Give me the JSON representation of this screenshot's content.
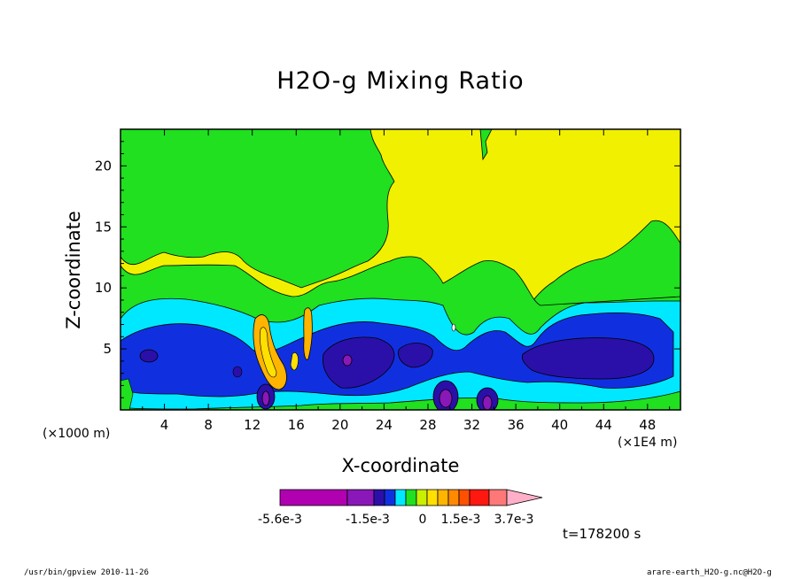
{
  "chart_data": {
    "type": "heatmap",
    "title": "H2O-g Mixing Ratio",
    "xlabel": "X-coordinate",
    "ylabel": "Z-coordinate",
    "xlim": [
      0,
      51
    ],
    "ylim": [
      0,
      23
    ],
    "x_ticks": [
      4,
      8,
      12,
      16,
      20,
      24,
      28,
      32,
      36,
      40,
      44,
      48
    ],
    "y_ticks": [
      5,
      10,
      15,
      20
    ],
    "x_scale_left": "(×1000 m)",
    "x_scale_right": "(×1E4 m)",
    "colorbar": {
      "colors": [
        "#b000b0",
        "#8a18b8",
        "#2a10a8",
        "#1030e0",
        "#00e8ff",
        "#20e020",
        "#c8f000",
        "#ffe000",
        "#ffb400",
        "#ff8a00",
        "#ff5000",
        "#ff1810",
        "#ff7878",
        "#ffb0c8"
      ],
      "labels": [
        "-5.6e-3",
        "-1.5e-3",
        "0",
        "1.5e-3",
        "3.7e-3"
      ]
    },
    "time_label": "t=178200 s"
  },
  "footer": {
    "left": "/usr/bin/gpview   2010-11-26",
    "right": "arare-earth_H2O-g.nc@H2O-g"
  }
}
